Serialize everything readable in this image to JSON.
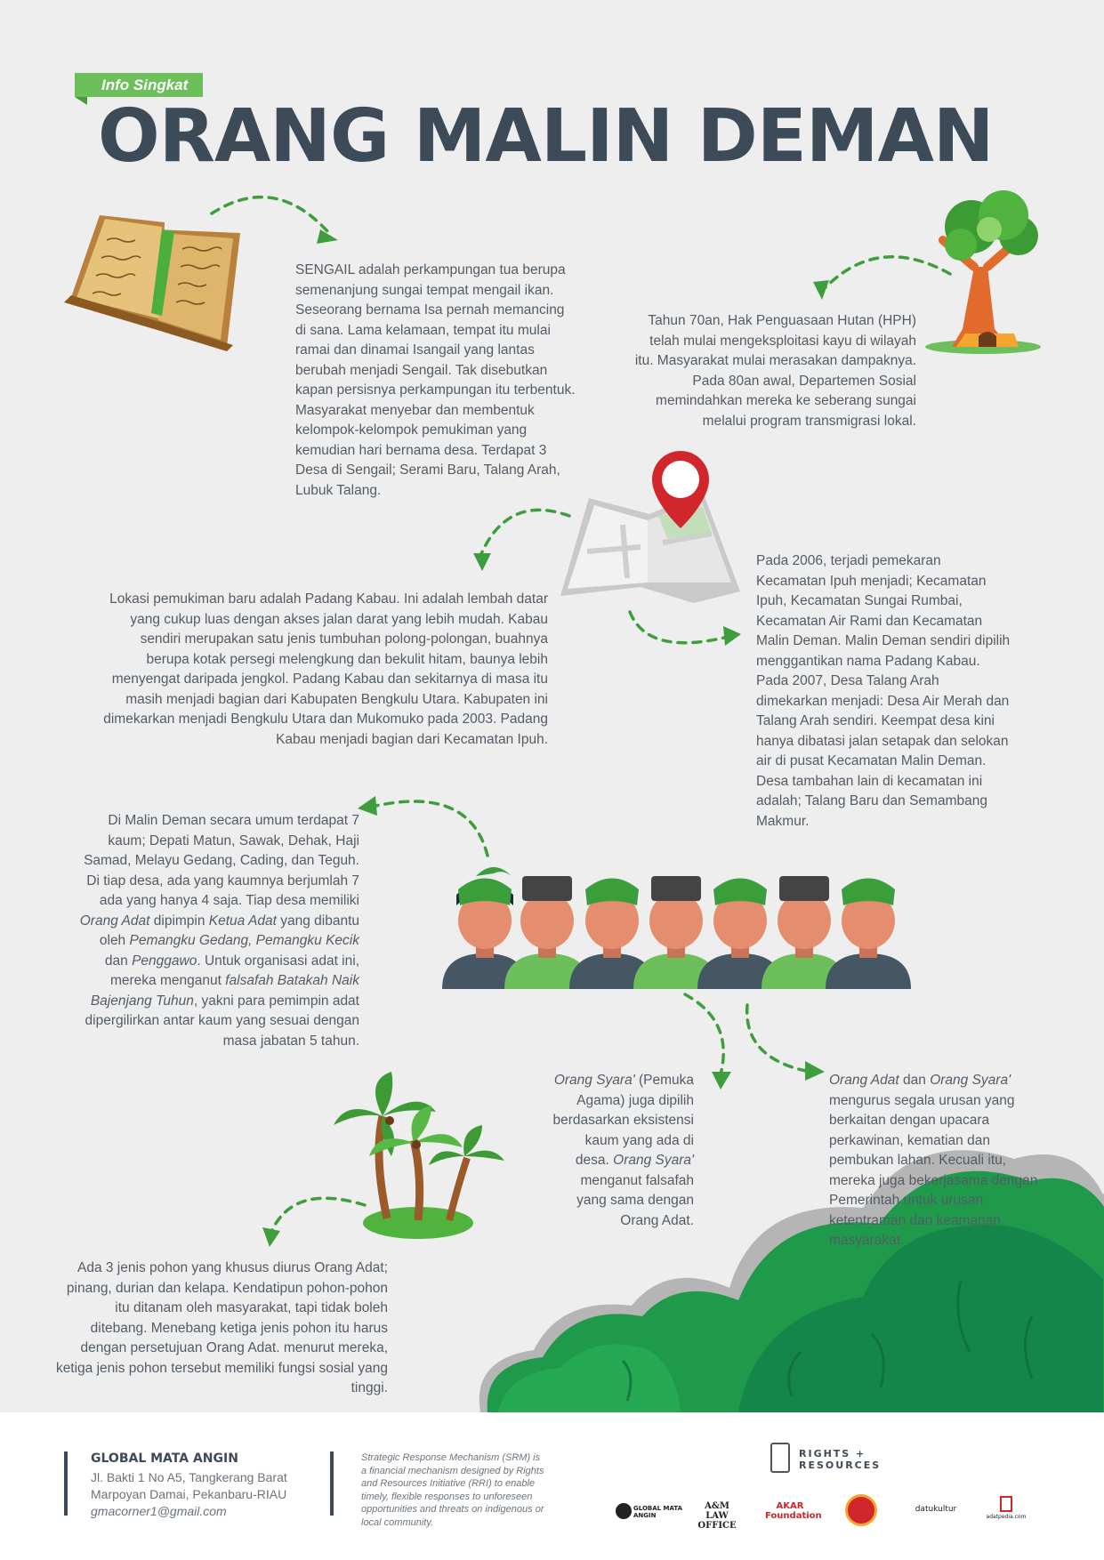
{
  "header": {
    "tag": "Info Singkat",
    "title": "ORANG MALIN DEMAN"
  },
  "sections": {
    "sengail": "SENGAIL adalah perkampungan tua berupa semenanjung sungai tempat mengail ikan. Seseorang bernama Isa pernah memancing di sana. Lama kelamaan, tempat itu mulai ramai dan dinamai Isangail yang lantas berubah menjadi Sengail. Tak disebutkan kapan persisnya perkampungan itu terbentuk. Masyarakat menyebar dan membentuk kelompok-kelompok pemukiman yang kemudian hari bernama desa. Terdapat 3 Desa di Sengail; Serami Baru, Talang Arah, Lubuk Talang.",
    "hph": "Tahun 70an, Hak Penguasaan Hutan (HPH) telah mulai mengeksploitasi kayu di wilayah itu. Masyarakat mulai merasakan dampaknya. Pada 80an awal, Departemen Sosial memindahkan mereka ke seberang sungai melalui program transmigrasi lokal.",
    "padang_kabau": "Lokasi pemukiman baru adalah Padang Kabau. Ini adalah lembah datar yang cukup luas dengan akses jalan darat yang lebih mudah. Kabau sendiri merupakan satu jenis tumbuhan polong-polongan, buahnya berupa kotak persegi melengkung dan bekulit hitam, baunya lebih menyengat daripada jengkol. Padang Kabau dan sekitarnya di masa itu masih menjadi bagian dari Kabupaten Bengkulu Utara. Kabupaten ini dimekarkan menjadi Bengkulu Utara dan Mukomuko pada 2003. Padang Kabau menjadi bagian dari Kecamatan Ipuh.",
    "pemekaran": "Pada 2006, terjadi pemekaran Kecamatan Ipuh menjadi; Kecamatan Ipuh, Kecamatan Sungai Rumbai, Kecamatan Air Rami dan Kecamatan Malin Deman. Malin Deman sendiri dipilih menggantikan nama Padang Kabau. Pada 2007, Desa Talang Arah dimekarkan menjadi: Desa Air Merah dan Talang Arah sendiri. Keempat desa kini hanya dibatasi jalan setapak dan selokan air di pusat Kecamatan Malin Deman. Desa tambahan lain di kecamatan ini adalah; Talang Baru dan Semambang Makmur.",
    "kaum": {
      "p1": "Di Malin Deman secara umum terdapat 7 kaum; Depati Matun, Sawak, Dehak, Haji Samad, Melayu Gedang, Cading, dan Teguh. Di tiap desa, ada yang kaumnya berjumlah 7 ada yang hanya 4 saja. Tiap desa memiliki ",
      "i1": "Orang Adat",
      "p2": " dipimpin ",
      "i2": "Ketua Adat",
      "p3": " yang dibantu oleh ",
      "i3": "Pemangku Gedang, Pemangku Kecik",
      "p4": " dan ",
      "i4": "Penggawo",
      "p5": ". Untuk organisasi adat ini, mereka menganut ",
      "i5": "falsafah Batakah Naik Bajenjang Tuhun",
      "p6": ", yakni para pemimpin adat dipergilirkan antar kaum yang sesuai dengan masa jabatan 5 tahun."
    },
    "syara": {
      "i1": "Orang Syara'",
      "p1": " (Pemuka Agama) juga dipilih berdasarkan eksistensi kaum yang ada di desa. ",
      "i2": "Orang Syara'",
      "p2": " menganut falsafah yang sama dengan Orang Adat."
    },
    "urus": {
      "i1": "Orang Adat",
      "p1": " dan ",
      "i2": "Orang Syara'",
      "p2": " mengurus segala urusan yang berkaitan dengan upacara perkawinan, kematian dan pembukan lahan. Kecuali itu, mereka juga bekerjasama dengan Pemerintah untuk urusan ketentraman dan keamanan masyarakat."
    },
    "pohon": "Ada 3 jenis pohon yang khusus diurus Orang Adat; pinang, durian dan kelapa. Kendatipun pohon-pohon itu ditanam oleh masyarakat, tapi tidak boleh ditebang. Menebang ketiga jenis pohon itu harus dengan persetujuan Orang Adat. menurut mereka, ketiga jenis pohon tersebut memiliki fungsi sosial yang tinggi."
  },
  "footer": {
    "org_name": "GLOBAL MATA ANGIN",
    "address1": "Jl. Bakti 1 No A5, Tangkerang Barat",
    "address2": "Marpoyan Damai, Pekanbaru-RIAU",
    "email": "gmacorner1@gmail.com",
    "srm": "Strategic Response Mechanism (SRM) is a financial mechanism designed by Rights and Resources Initiative (RRI) to enable timely, flexible responses to unforeseen opportunities and threats on indigenous or local community.",
    "rr_logo": {
      "line1": "RIGHTS +",
      "line2": "RESOURCES"
    },
    "partner_logos": [
      "GLOBAL MATA ANGIN",
      "A&M LAW OFFICE",
      "AKAR Foundation",
      "",
      "datukultur",
      "adatpedia.com"
    ]
  },
  "colors": {
    "accent_green": "#6cbf5a",
    "title_dark": "#3d4b59",
    "bush_green": "#1f9a4a",
    "pin_red": "#d0262c"
  }
}
